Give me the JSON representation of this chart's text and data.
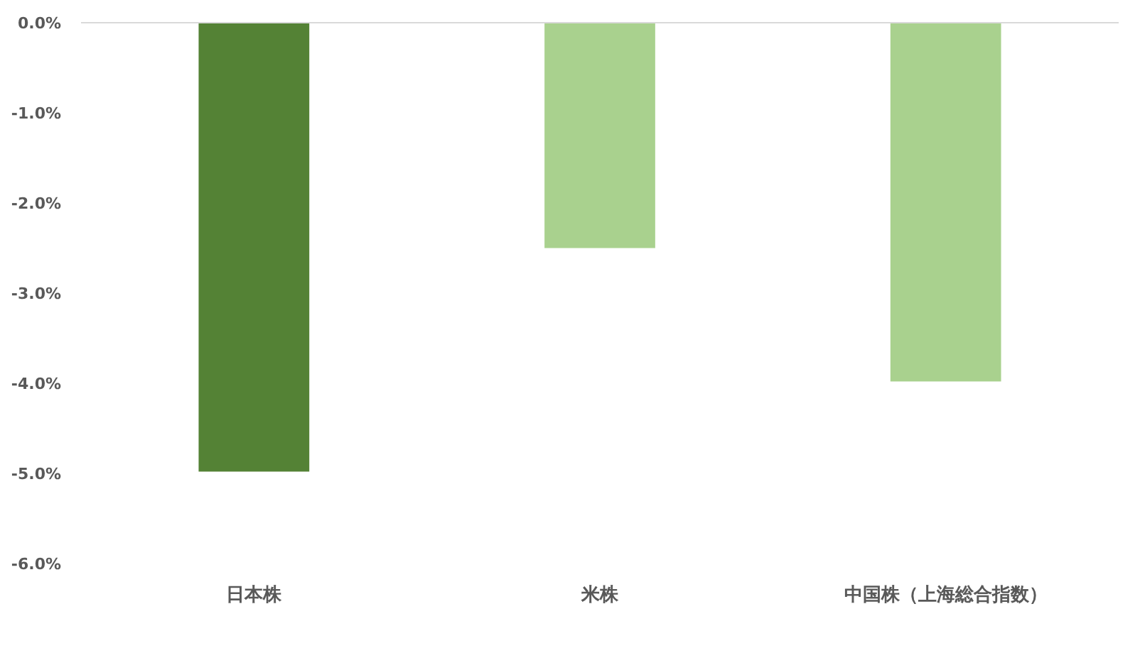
{
  "chart_data": {
    "type": "bar",
    "categories": [
      "日本株",
      "米株",
      "中国株（上海総合指数）"
    ],
    "values": [
      -4.98,
      -2.5,
      -3.98
    ],
    "colors": [
      "#548235",
      "#a9d18e",
      "#a9d18e"
    ],
    "ylim": [
      -6,
      0
    ],
    "yticks": [
      {
        "value": -6,
        "label": "-6.0%"
      },
      {
        "value": -5,
        "label": "-5.0%"
      },
      {
        "value": -4,
        "label": "-4.0%"
      },
      {
        "value": -3,
        "label": "-3.0%"
      },
      {
        "value": -2,
        "label": "-2.0%"
      },
      {
        "value": -1,
        "label": "-1.0%"
      },
      {
        "value": 0,
        "label": "0.0%"
      }
    ],
    "grid": false
  }
}
